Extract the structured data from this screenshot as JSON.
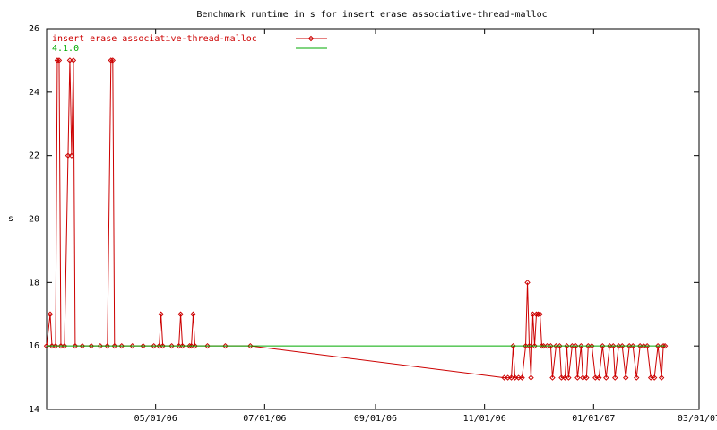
{
  "chart_data": {
    "type": "line",
    "title": "Benchmark runtime in s for insert erase associative-thread-malloc",
    "y_label": "s",
    "xlim": [
      "2006-03-01",
      "2007-03-01"
    ],
    "xticks": [
      {
        "value": "2006-05-01",
        "label": "05/01/06"
      },
      {
        "value": "2006-07-01",
        "label": "07/01/06"
      },
      {
        "value": "2006-09-01",
        "label": "09/01/06"
      },
      {
        "value": "2006-11-01",
        "label": "11/01/06"
      },
      {
        "value": "2007-01-01",
        "label": "01/01/07"
      },
      {
        "value": "2007-03-01",
        "label": "03/01/07"
      }
    ],
    "ylim": [
      14,
      26
    ],
    "yticks": [
      14,
      16,
      18,
      20,
      22,
      24,
      26
    ],
    "legend": "top-left",
    "series": [
      {
        "name": "insert erase associative-thread-malloc",
        "color": "#cc0000",
        "markers": true,
        "x": [
          "2006-03-01",
          "2006-03-03",
          "2006-03-04",
          "2006-03-06",
          "2006-03-07",
          "2006-03-08",
          "2006-03-09",
          "2006-03-11",
          "2006-03-13",
          "2006-03-14",
          "2006-03-15",
          "2006-03-16",
          "2006-03-17",
          "2006-03-21",
          "2006-03-26",
          "2006-03-31",
          "2006-04-04",
          "2006-04-06",
          "2006-04-07",
          "2006-04-08",
          "2006-04-12",
          "2006-04-18",
          "2006-04-24",
          "2006-04-30",
          "2006-05-03",
          "2006-05-04",
          "2006-05-05",
          "2006-05-10",
          "2006-05-14",
          "2006-05-15",
          "2006-05-16",
          "2006-05-20",
          "2006-05-21",
          "2006-05-22",
          "2006-05-23",
          "2006-05-30",
          "2006-06-09",
          "2006-06-23",
          "2006-11-12",
          "2006-11-14",
          "2006-11-16",
          "2006-11-17",
          "2006-11-18",
          "2006-11-20",
          "2006-11-22",
          "2006-11-24",
          "2006-11-25",
          "2006-11-26",
          "2006-11-27",
          "2006-11-28",
          "2006-11-29",
          "2006-11-30",
          "2006-12-01",
          "2006-12-02",
          "2006-12-03",
          "2006-12-04",
          "2006-12-06",
          "2006-12-08",
          "2006-12-09",
          "2006-12-11",
          "2006-12-13",
          "2006-12-14",
          "2006-12-16",
          "2006-12-17",
          "2006-12-18",
          "2006-12-20",
          "2006-12-22",
          "2006-12-23",
          "2006-12-25",
          "2006-12-26",
          "2006-12-28",
          "2006-12-29",
          "2006-12-31",
          "2007-01-02",
          "2007-01-04",
          "2007-01-06",
          "2007-01-08",
          "2007-01-10",
          "2007-01-12",
          "2007-01-13",
          "2007-01-15",
          "2007-01-17",
          "2007-01-19",
          "2007-01-21",
          "2007-01-23",
          "2007-01-25",
          "2007-01-27",
          "2007-01-29",
          "2007-01-31",
          "2007-02-02",
          "2007-02-04",
          "2007-02-06",
          "2007-02-08",
          "2007-02-09",
          "2007-02-10"
        ],
        "values": [
          16,
          17,
          16,
          16,
          25,
          25,
          16,
          16,
          22,
          25,
          22,
          25,
          16,
          16,
          16,
          16,
          16,
          25,
          25,
          16,
          16,
          16,
          16,
          16,
          16,
          17,
          16,
          16,
          16,
          17,
          16,
          16,
          16,
          17,
          16,
          16,
          16,
          16,
          15,
          15,
          15,
          16,
          15,
          15,
          15,
          16,
          18,
          16,
          15,
          17,
          16,
          17,
          17,
          17,
          16,
          16,
          16,
          16,
          15,
          16,
          16,
          15,
          15,
          16,
          15,
          16,
          16,
          15,
          16,
          15,
          15,
          16,
          16,
          15,
          15,
          16,
          15,
          16,
          16,
          15,
          16,
          16,
          15,
          16,
          16,
          15,
          16,
          16,
          16,
          15,
          15,
          16,
          15,
          16,
          16
        ]
      },
      {
        "name": "4.1.0",
        "color": "#00aa00",
        "markers": false,
        "x": [
          "2006-03-01",
          "2007-02-10"
        ],
        "values": [
          16,
          16
        ]
      }
    ]
  }
}
